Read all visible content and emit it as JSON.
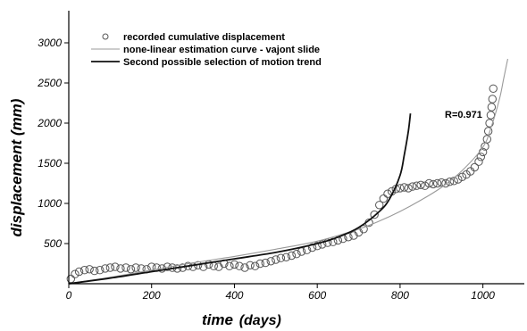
{
  "chart_data": {
    "type": "scatter",
    "xlabel": "time",
    "xlabel_unit": "(days)",
    "ylabel": "displacement (mm)",
    "xlim": [
      0,
      1100
    ],
    "ylim": [
      0,
      3400
    ],
    "xticks": [
      0,
      200,
      400,
      600,
      800,
      1000
    ],
    "yticks": [
      500,
      1000,
      1500,
      2000,
      2500,
      3000
    ],
    "legend_position": "top-left",
    "grid": false,
    "annotation": "R=0.971",
    "series": [
      {
        "name": "recorded cumulative displacement",
        "kind": "points",
        "color": "#555555",
        "x": [
          5,
          15,
          25,
          38,
          50,
          62,
          75,
          88,
          100,
          112,
          125,
          138,
          150,
          162,
          175,
          188,
          200,
          212,
          225,
          238,
          250,
          262,
          275,
          288,
          300,
          312,
          325,
          338,
          350,
          362,
          375,
          388,
          400,
          412,
          425,
          438,
          450,
          462,
          475,
          488,
          500,
          512,
          525,
          538,
          550,
          562,
          575,
          588,
          600,
          612,
          625,
          638,
          650,
          662,
          675,
          688,
          700,
          712,
          725,
          738,
          750,
          760,
          770,
          780,
          790,
          800,
          810,
          820,
          830,
          840,
          850,
          860,
          870,
          880,
          890,
          900,
          910,
          920,
          930,
          940,
          950,
          960,
          970,
          980,
          990,
          995,
          1000,
          1005,
          1010,
          1013,
          1016,
          1019,
          1021,
          1023,
          1025
        ],
        "y": [
          60,
          120,
          150,
          170,
          180,
          160,
          170,
          190,
          200,
          210,
          190,
          200,
          180,
          200,
          190,
          180,
          210,
          200,
          190,
          210,
          200,
          190,
          200,
          220,
          210,
          230,
          210,
          240,
          220,
          210,
          250,
          220,
          240,
          220,
          200,
          230,
          220,
          250,
          260,
          280,
          300,
          320,
          330,
          350,
          370,
          400,
          420,
          450,
          470,
          490,
          510,
          520,
          540,
          560,
          580,
          600,
          640,
          680,
          760,
          860,
          980,
          1060,
          1120,
          1150,
          1180,
          1190,
          1200,
          1190,
          1210,
          1220,
          1230,
          1220,
          1250,
          1240,
          1250,
          1260,
          1250,
          1270,
          1280,
          1300,
          1330,
          1360,
          1400,
          1450,
          1520,
          1580,
          1640,
          1710,
          1800,
          1900,
          2000,
          2100,
          2200,
          2300,
          2430
        ]
      },
      {
        "name": "none-linear estimation curve - vajont slide",
        "kind": "line",
        "color": "#9a9a9a",
        "x": [
          0,
          100,
          200,
          300,
          400,
          500,
          600,
          700,
          750,
          800,
          850,
          900,
          950,
          1000,
          1020,
          1040,
          1050,
          1060
        ],
        "y": [
          0,
          80,
          170,
          260,
          340,
          430,
          530,
          680,
          780,
          900,
          1040,
          1200,
          1410,
          1700,
          1950,
          2300,
          2550,
          2800
        ]
      },
      {
        "name": "Second possible selection of motion trend",
        "kind": "line",
        "color": "#111111",
        "x": [
          0,
          100,
          200,
          300,
          400,
          500,
          600,
          650,
          700,
          750,
          775,
          800,
          810,
          820,
          825
        ],
        "y": [
          0,
          70,
          150,
          230,
          310,
          390,
          500,
          580,
          700,
          900,
          1060,
          1350,
          1600,
          1900,
          2120
        ]
      }
    ]
  }
}
